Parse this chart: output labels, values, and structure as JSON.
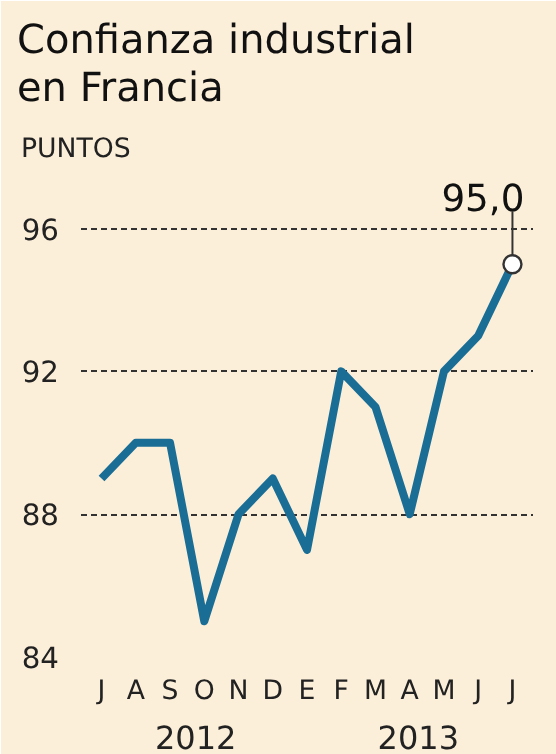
{
  "chart_data": {
    "type": "line",
    "title": "Confianza industrial\nen Francia",
    "ylabel": "PUNTOS",
    "categories": [
      "J",
      "A",
      "S",
      "O",
      "N",
      "D",
      "E",
      "F",
      "M",
      "A",
      "M",
      "J",
      "J"
    ],
    "series": [
      {
        "color": "#1a6e96",
        "values": [
          89,
          90,
          90,
          85,
          88,
          89,
          87,
          92,
          91,
          88,
          92,
          93,
          95
        ],
        "value_labels": [
          null,
          null,
          null,
          null,
          null,
          null,
          null,
          null,
          null,
          null,
          null,
          null,
          "95,0"
        ]
      }
    ],
    "ylim": [
      84,
      97.5
    ],
    "yticks": [
      84,
      88,
      92,
      96
    ],
    "grid": "y",
    "line_style": "solid",
    "annotations": [
      "2012",
      "2013"
    ]
  }
}
